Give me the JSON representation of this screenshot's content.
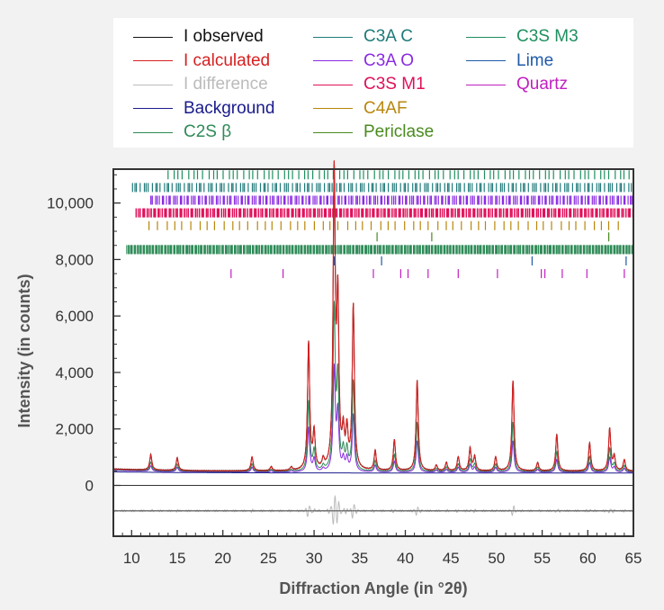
{
  "chart_data": {
    "type": "line",
    "xlabel": "Diffraction Angle (in °2θ)",
    "ylabel": "Intensity (in counts)",
    "xlim": [
      8,
      65
    ],
    "ylim": [
      -1800,
      11200
    ],
    "x_ticks": [
      10,
      15,
      20,
      25,
      30,
      35,
      40,
      45,
      50,
      55,
      60,
      65
    ],
    "x_tick_labels": [
      "10",
      "15",
      "20",
      "25",
      "30",
      "35",
      "40",
      "45",
      "50",
      "55",
      "60",
      "65"
    ],
    "y_ticks": [
      0,
      2000,
      4000,
      6000,
      8000,
      10000
    ],
    "y_tick_labels": [
      "0",
      "2,000",
      "4,000",
      "6,000",
      "8,000",
      "10,000"
    ],
    "legend_position": "top",
    "legend": [
      {
        "name": "I observed",
        "color": "#111111"
      },
      {
        "name": "I calculated",
        "color": "#d62020"
      },
      {
        "name": "I difference",
        "color": "#bbbbbb"
      },
      {
        "name": "Background",
        "color": "#1a1a8c"
      },
      {
        "name": "C2S β",
        "color": "#2e8b57"
      },
      {
        "name": "C3A C",
        "color": "#1f7a7a"
      },
      {
        "name": "C3A O",
        "color": "#8a2be2"
      },
      {
        "name": "C3S M1",
        "color": "#e0105a"
      },
      {
        "name": "C4AF",
        "color": "#b8860b"
      },
      {
        "name": "Periclase",
        "color": "#4a8a1e"
      },
      {
        "name": "C3S M3",
        "color": "#1f8f5f"
      },
      {
        "name": "Lime",
        "color": "#1f5aa8"
      },
      {
        "name": "Quartz",
        "color": "#c020c0"
      }
    ],
    "baseline": 500,
    "difference_offset": -900,
    "peaks": [
      {
        "x": 12.1,
        "y": 1050
      },
      {
        "x": 15.0,
        "y": 950
      },
      {
        "x": 23.2,
        "y": 1000
      },
      {
        "x": 25.3,
        "y": 650
      },
      {
        "x": 27.5,
        "y": 620
      },
      {
        "x": 29.4,
        "y": 5000
      },
      {
        "x": 30.0,
        "y": 1800
      },
      {
        "x": 31.0,
        "y": 800
      },
      {
        "x": 32.2,
        "y": 10800
      },
      {
        "x": 32.6,
        "y": 6200
      },
      {
        "x": 33.2,
        "y": 1700
      },
      {
        "x": 33.6,
        "y": 1800
      },
      {
        "x": 34.3,
        "y": 6300
      },
      {
        "x": 36.7,
        "y": 1200
      },
      {
        "x": 38.8,
        "y": 1600
      },
      {
        "x": 41.3,
        "y": 3700
      },
      {
        "x": 43.4,
        "y": 700
      },
      {
        "x": 44.5,
        "y": 800
      },
      {
        "x": 45.8,
        "y": 1000
      },
      {
        "x": 47.1,
        "y": 1300
      },
      {
        "x": 47.6,
        "y": 1000
      },
      {
        "x": 49.9,
        "y": 1000
      },
      {
        "x": 51.8,
        "y": 3700
      },
      {
        "x": 54.5,
        "y": 800
      },
      {
        "x": 56.6,
        "y": 1800
      },
      {
        "x": 60.2,
        "y": 1500
      },
      {
        "x": 62.4,
        "y": 2000
      },
      {
        "x": 62.9,
        "y": 1000
      },
      {
        "x": 64.0,
        "y": 900
      }
    ],
    "reflection_rows": [
      {
        "phase": "C3S M3",
        "color": "#1f8f5f",
        "y": 11000,
        "start": 14,
        "end": 65,
        "step": 0.55
      },
      {
        "phase": "C3A C",
        "color": "#1f7a7a",
        "y": 10550,
        "start": 10,
        "end": 65,
        "step": 0.32
      },
      {
        "phase": "C3A O",
        "color": "#8a2be2",
        "y": 10100,
        "start": 12,
        "end": 65,
        "step": 0.18
      },
      {
        "phase": "C3S M1",
        "color": "#e0105a",
        "y": 9650,
        "start": 10.5,
        "end": 65,
        "step": 0.11
      },
      {
        "phase": "C4AF",
        "color": "#b8860b",
        "y": 9200,
        "start": 12,
        "end": 64,
        "step": 0.9
      },
      {
        "phase": "Periclase",
        "color": "#4a8a1e",
        "y": 8800,
        "positions": [
          36.9,
          42.9,
          62.3
        ]
      },
      {
        "phase": "C2S β",
        "color": "#2e8b57",
        "y": 8350,
        "start": 9.5,
        "end": 65,
        "step": 0.09
      },
      {
        "phase": "Lime",
        "color": "#1f5aa8",
        "y": 7950,
        "positions": [
          32.2,
          37.4,
          53.9,
          64.2
        ]
      },
      {
        "phase": "Quartz",
        "color": "#c020c0",
        "y": 7500,
        "positions": [
          20.9,
          26.6,
          36.5,
          39.5,
          40.3,
          42.5,
          45.8,
          50.1,
          54.9,
          55.3,
          57.2,
          59.9,
          64.0
        ]
      }
    ]
  }
}
